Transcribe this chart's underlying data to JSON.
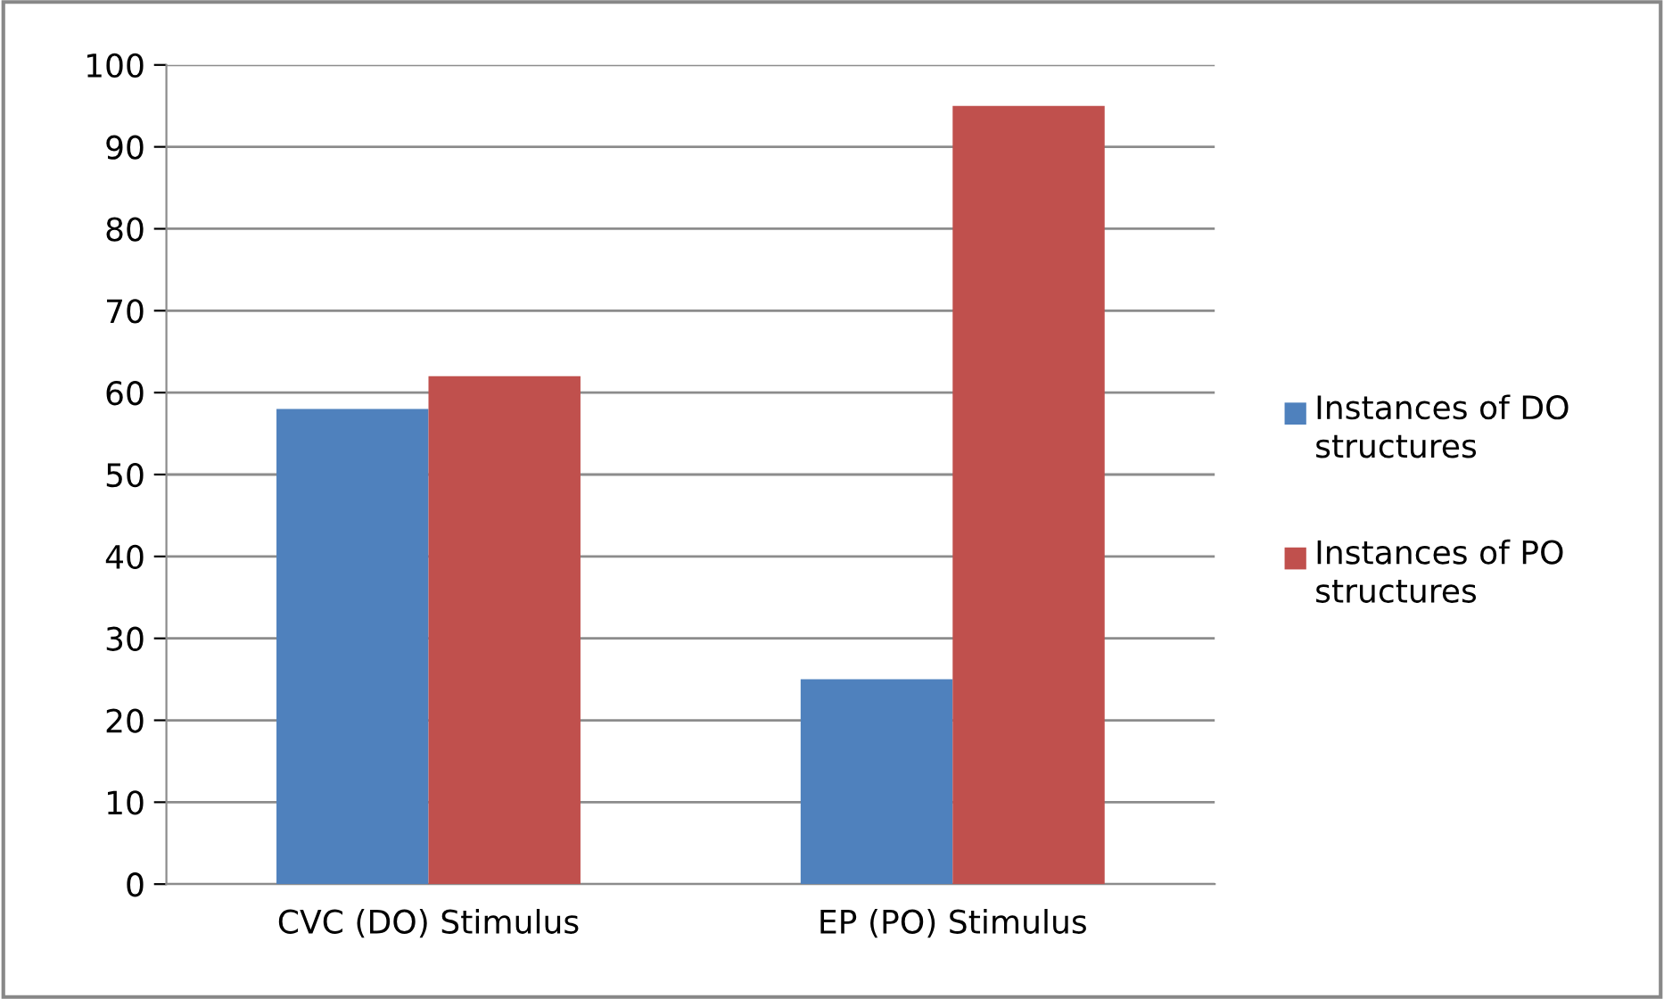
{
  "chart_data": {
    "type": "bar",
    "categories": [
      "CVC (DO) Stimulus",
      "EP (PO) Stimulus"
    ],
    "series": [
      {
        "name": "Instances of DO structures",
        "color": "#4f81bd",
        "values": [
          58,
          25
        ]
      },
      {
        "name": "Instances of PO structures",
        "color": "#c0504d",
        "values": [
          62,
          95
        ]
      }
    ],
    "ylim": [
      0,
      100
    ],
    "yticks": [
      0,
      10,
      20,
      30,
      40,
      50,
      60,
      70,
      80,
      90,
      100
    ],
    "grid": "y",
    "legend": "right"
  }
}
